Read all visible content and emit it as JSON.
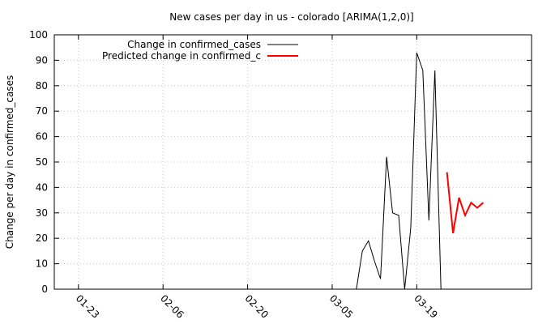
{
  "chart_data": {
    "type": "line",
    "title": "New cases per day in us - colorado [ARIMA(1,2,0)]",
    "xlabel": "",
    "ylabel": "Change per day in confirmed_cases",
    "ylim": [
      0,
      100
    ],
    "yticks": [
      "0",
      "10",
      "20",
      "30",
      "40",
      "50",
      "60",
      "70",
      "80",
      "90",
      "100"
    ],
    "xlim": [
      "2020-01-19",
      "2020-04-07"
    ],
    "xticks": [
      {
        "date": "2020-01-23",
        "label": "01-23"
      },
      {
        "date": "2020-02-06",
        "label": "02-06"
      },
      {
        "date": "2020-02-20",
        "label": "02-20"
      },
      {
        "date": "2020-03-05",
        "label": "03-05"
      },
      {
        "date": "2020-03-19",
        "label": "03-19"
      }
    ],
    "grid": true,
    "legend_position": "top-left",
    "series": [
      {
        "name": "Change in confirmed_cases",
        "color": "#000000",
        "points": [
          [
            "2020-03-09",
            0
          ],
          [
            "2020-03-10",
            15
          ],
          [
            "2020-03-11",
            19
          ],
          [
            "2020-03-12",
            11
          ],
          [
            "2020-03-13",
            4
          ],
          [
            "2020-03-14",
            52
          ],
          [
            "2020-03-15",
            30
          ],
          [
            "2020-03-16",
            29
          ],
          [
            "2020-03-17",
            0
          ],
          [
            "2020-03-18",
            24
          ],
          [
            "2020-03-19",
            93
          ],
          [
            "2020-03-20",
            86
          ],
          [
            "2020-03-21",
            27
          ],
          [
            "2020-03-22",
            86
          ],
          [
            "2020-03-23",
            0
          ]
        ]
      },
      {
        "name": "Predicted change in confirmed_c",
        "color": "#ff0000",
        "points": [
          [
            "2020-03-24",
            46
          ],
          [
            "2020-03-25",
            22
          ],
          [
            "2020-03-26",
            36
          ],
          [
            "2020-03-27",
            29
          ],
          [
            "2020-03-28",
            34
          ],
          [
            "2020-03-29",
            32
          ],
          [
            "2020-03-30",
            34
          ]
        ]
      }
    ]
  }
}
